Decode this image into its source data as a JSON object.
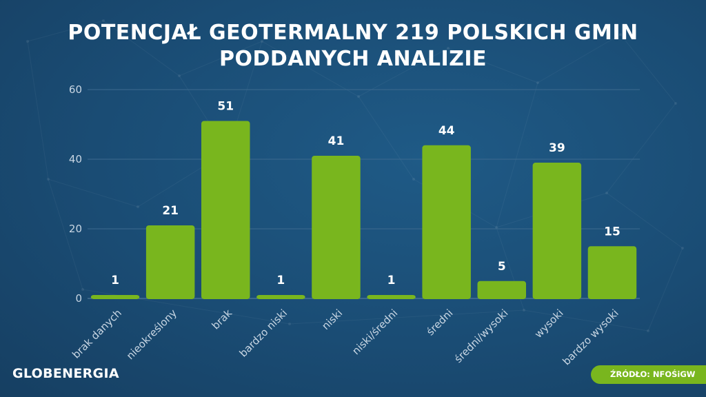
{
  "header": {
    "title_line1": "POTENCJAŁ GEOTERMALNY 219 POLSKICH GMIN",
    "title_line2": "PODDANYCH ANALIZIE"
  },
  "footer": {
    "logo": "GLOBENERGIA",
    "source": "ŹRÓDŁO: NFOŚiGW"
  },
  "colors": {
    "bar": "#79b61e",
    "background": "#1a4c74",
    "text": "#ffffff",
    "axis_text": "#c8d6e3",
    "grid": "#3d6a8f"
  },
  "chart_data": {
    "type": "bar",
    "categories": [
      "brak danych",
      "nieokreślony",
      "brak",
      "bardzo niski",
      "niski",
      "niski/średni",
      "średni",
      "średni/wysoki",
      "wysoki",
      "bardzo wysoki"
    ],
    "values": [
      1,
      21,
      51,
      1,
      41,
      1,
      44,
      5,
      39,
      15
    ],
    "ylim": [
      0,
      60
    ],
    "yticks": [
      0,
      20,
      40,
      60
    ],
    "grid": true,
    "xlabel": "",
    "ylabel": ""
  }
}
